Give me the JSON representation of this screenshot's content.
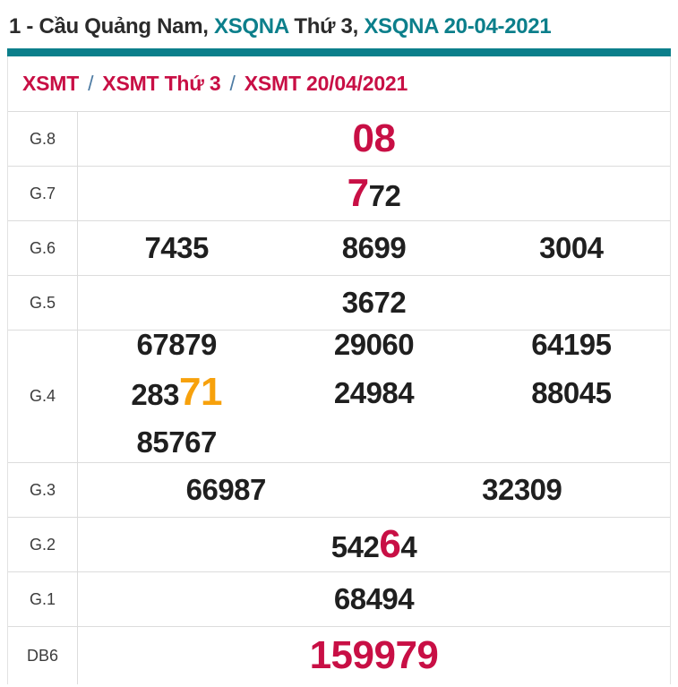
{
  "colors": {
    "teal": "#0c7f8b",
    "crimson": "#c80f45",
    "orange": "#f7a10c",
    "text_dark": "#1f1f1f",
    "label_gray": "#3c3c3c",
    "border": "#dcdcdc",
    "slash": "#4d7ba3"
  },
  "page_title": {
    "segments": [
      {
        "t": "1 - Cầu Quảng Nam, ",
        "s": "dark",
        "link": false
      },
      {
        "t": "XSQNA",
        "s": "teal",
        "link": true
      },
      {
        "t": " Thứ 3, ",
        "s": "dark",
        "link": false
      },
      {
        "t": "XSQNA 20-04-2021",
        "s": "teal",
        "link": true
      }
    ]
  },
  "breadcrumb": {
    "separator": "/",
    "items": [
      {
        "label": "XSMT"
      },
      {
        "label": "XSMT Thứ 3"
      },
      {
        "label": "XSMT 20/04/2021"
      }
    ]
  },
  "results_table": {
    "rows": [
      {
        "label": "G.8",
        "layout": "single",
        "cells": [
          [
            {
              "t": "08",
              "s": "red-big"
            }
          ]
        ]
      },
      {
        "label": "G.7",
        "layout": "single",
        "cells": [
          [
            {
              "t": "7",
              "s": "red-big"
            },
            {
              "t": "72"
            }
          ]
        ]
      },
      {
        "label": "G.6",
        "layout": "cols3",
        "cells": [
          [
            {
              "t": "7435"
            }
          ],
          [
            {
              "t": "8699"
            }
          ],
          [
            {
              "t": "3004"
            }
          ]
        ]
      },
      {
        "label": "G.5",
        "layout": "single",
        "cells": [
          [
            {
              "t": "3672"
            }
          ]
        ]
      },
      {
        "label": "G.4",
        "layout": "grid3",
        "cells": [
          [
            {
              "t": "67879"
            }
          ],
          [
            {
              "t": "29060"
            }
          ],
          [
            {
              "t": "64195"
            }
          ],
          [
            {
              "t": "283"
            },
            {
              "t": "71",
              "s": "orange-big"
            }
          ],
          [
            {
              "t": "24984"
            }
          ],
          [
            {
              "t": "88045"
            }
          ],
          [
            {
              "t": "85767"
            }
          ]
        ]
      },
      {
        "label": "G.3",
        "layout": "cols2",
        "cells": [
          [
            {
              "t": "66987"
            }
          ],
          [
            {
              "t": "32309"
            }
          ]
        ]
      },
      {
        "label": "G.2",
        "layout": "single",
        "cells": [
          [
            {
              "t": "542"
            },
            {
              "t": "6",
              "s": "red-big"
            },
            {
              "t": "4"
            }
          ]
        ]
      },
      {
        "label": "G.1",
        "layout": "single",
        "cells": [
          [
            {
              "t": "68494"
            }
          ]
        ]
      },
      {
        "label": "DB6",
        "layout": "single",
        "cells": [
          [
            {
              "t": "159979",
              "s": "red-big"
            }
          ]
        ]
      }
    ]
  }
}
